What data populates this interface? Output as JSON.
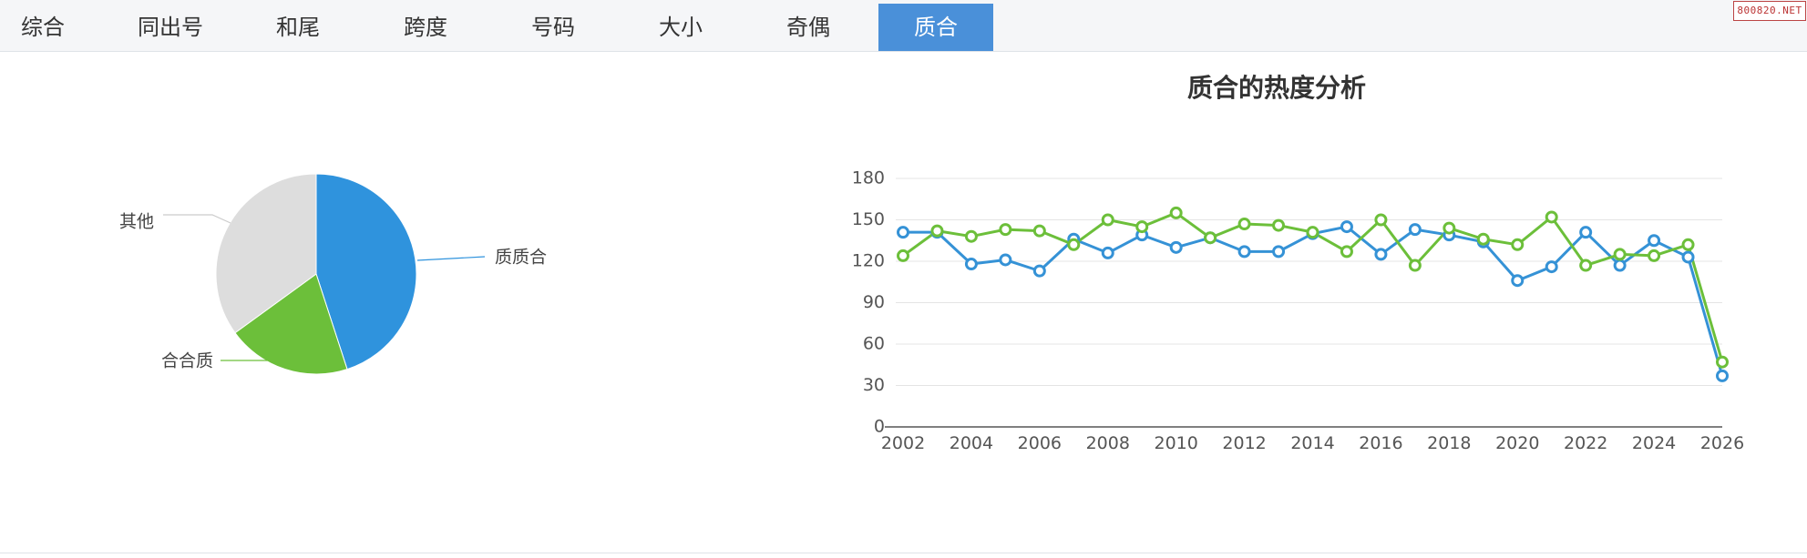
{
  "tabs": [
    {
      "label": "综合",
      "active": false
    },
    {
      "label": "同出号",
      "active": false
    },
    {
      "label": "和尾",
      "active": false
    },
    {
      "label": "跨度",
      "active": false
    },
    {
      "label": "号码",
      "active": false
    },
    {
      "label": "大小",
      "active": false
    },
    {
      "label": "奇偶",
      "active": false
    },
    {
      "label": "质合",
      "active": true
    }
  ],
  "watermark": "800820.NET",
  "colors": {
    "blue": "#3592d6",
    "green": "#6cbf3a",
    "gray": "#dddddd",
    "accent": "#4a90d9"
  },
  "chart_data": [
    {
      "type": "pie",
      "title": "",
      "slices": [
        {
          "label": "质质合",
          "value": 45,
          "color": "#2f93dd"
        },
        {
          "label": "合合质",
          "value": 20,
          "color": "#6cbf3a"
        },
        {
          "label": "其他",
          "value": 35,
          "color": "#dddddd"
        }
      ]
    },
    {
      "type": "line",
      "title": "质合的热度分析",
      "xlabel": "",
      "ylabel": "",
      "ylim": [
        0,
        180
      ],
      "yticks": [
        0,
        30,
        60,
        90,
        120,
        150,
        180
      ],
      "xticks": [
        2002,
        2004,
        2006,
        2008,
        2010,
        2012,
        2014,
        2016,
        2018,
        2020,
        2022,
        2024,
        2026
      ],
      "grid": true,
      "legend": false,
      "x": [
        2002,
        2003,
        2004,
        2005,
        2006,
        2007,
        2008,
        2009,
        2010,
        2011,
        2012,
        2013,
        2014,
        2015,
        2016,
        2017,
        2018,
        2019,
        2020,
        2021,
        2022,
        2023,
        2024,
        2025,
        2026
      ],
      "series": [
        {
          "color": "#3592d6",
          "values": [
            141,
            141,
            118,
            121,
            113,
            136,
            126,
            139,
            130,
            137,
            127,
            127,
            140,
            145,
            125,
            143,
            139,
            134,
            106,
            116,
            141,
            117,
            135,
            123,
            37
          ]
        },
        {
          "color": "#6cbf3a",
          "values": [
            124,
            142,
            138,
            143,
            142,
            132,
            150,
            145,
            155,
            137,
            147,
            146,
            141,
            127,
            150,
            117,
            144,
            136,
            132,
            152,
            117,
            125,
            124,
            132,
            47
          ]
        }
      ]
    }
  ]
}
